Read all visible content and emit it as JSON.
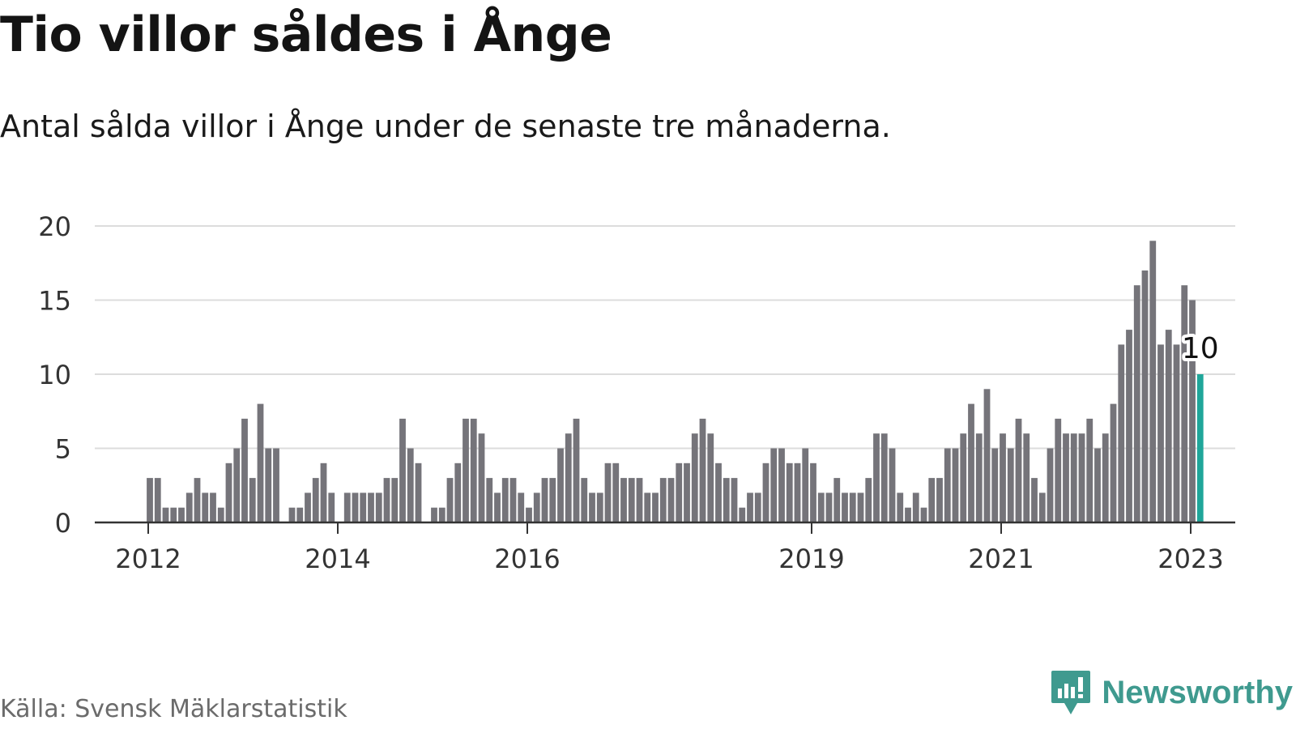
{
  "title": "Tio villor såldes i Ånge",
  "subtitle": "Antal sålda villor i Ånge under de senaste tre månaderna.",
  "source": "Källa: Svensk Mäklarstatistik",
  "brand": "Newsworthy",
  "colors": {
    "bar": "#75747a",
    "highlight": "#1fa69a",
    "grid": "#dcdcdc",
    "axis": "#333333",
    "brand": "#3f9a8f"
  },
  "chart_data": {
    "type": "bar",
    "title": "Tio villor såldes i Ånge",
    "subtitle": "Antal sålda villor i Ånge under de senaste tre månaderna.",
    "xlabel": "",
    "ylabel": "",
    "ylim": [
      0,
      20
    ],
    "yticks": [
      0,
      5,
      10,
      15,
      20
    ],
    "grid": true,
    "legend": "none",
    "x_start": "2012-01",
    "x_end": "2023-02",
    "x_ticks": [
      {
        "label": "2012",
        "month": "2012-01"
      },
      {
        "label": "2014",
        "month": "2014-01"
      },
      {
        "label": "2016",
        "month": "2016-01"
      },
      {
        "label": "2019",
        "month": "2019-01"
      },
      {
        "label": "2021",
        "month": "2021-01"
      },
      {
        "label": "2023",
        "month": "2023-01"
      }
    ],
    "series": [
      {
        "values": [
          3,
          3,
          1,
          1,
          1,
          2,
          3,
          2,
          2,
          1,
          4,
          5,
          7,
          3,
          8,
          5,
          5,
          0,
          1,
          1,
          2,
          3,
          4,
          2,
          0,
          2,
          2,
          2,
          2,
          2,
          3,
          3,
          7,
          5,
          4,
          0,
          1,
          1,
          3,
          4,
          7,
          7,
          6,
          3,
          2,
          3,
          3,
          2,
          1,
          2,
          3,
          3,
          5,
          6,
          7,
          3,
          2,
          2,
          4,
          4,
          3,
          3,
          3,
          2,
          2,
          3,
          3,
          4,
          4,
          6,
          7,
          6,
          4,
          3,
          3,
          1,
          2,
          2,
          4,
          5,
          5,
          4,
          4,
          5,
          4,
          2,
          2,
          3,
          2,
          2,
          2,
          3,
          6,
          6,
          5,
          2,
          1,
          2,
          1,
          3,
          3,
          5,
          5,
          6,
          8,
          6,
          9,
          5,
          6,
          5,
          7,
          6,
          3,
          2,
          5,
          7,
          6,
          6,
          6,
          7,
          5,
          6,
          8,
          12,
          13,
          16,
          17,
          19,
          12,
          13,
          12,
          16,
          15,
          10
        ]
      }
    ],
    "highlight": {
      "month": "2023-02",
      "value": 10,
      "label": "10"
    }
  }
}
